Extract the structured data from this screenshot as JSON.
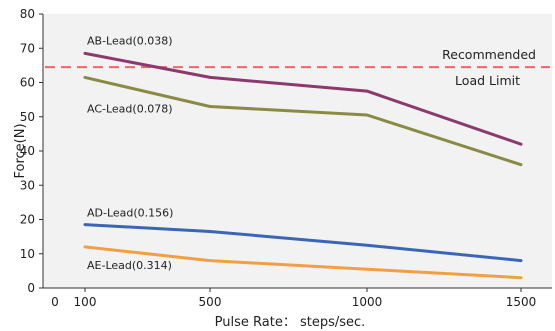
{
  "chart_data": {
    "type": "line",
    "xlabel": "Pulse Rate： steps/sec.",
    "ylabel": "Force(N)",
    "x_ticks": [
      0,
      100,
      500,
      1000,
      1500
    ],
    "y_ticks": [
      0,
      10,
      20,
      30,
      40,
      50,
      60,
      70,
      80
    ],
    "ylim": [
      0,
      80
    ],
    "grid": false,
    "series": [
      {
        "name": "AB-Lead(0.038)",
        "color": "#8b3a6e",
        "x": [
          100,
          500,
          1000,
          1500
        ],
        "y": [
          68.5,
          61.5,
          57.5,
          42
        ]
      },
      {
        "name": "AC-Lead(0.078)",
        "color": "#8a8a45",
        "x": [
          100,
          500,
          1000,
          1500
        ],
        "y": [
          61.5,
          53,
          50.5,
          36
        ]
      },
      {
        "name": "AD-Lead(0.156)",
        "color": "#3a66b5",
        "x": [
          100,
          500,
          1000,
          1500
        ],
        "y": [
          18.5,
          16.5,
          12.5,
          8
        ]
      },
      {
        "name": "AE-Lead(0.314)",
        "color": "#f0a040",
        "x": [
          100,
          500,
          1000,
          1500
        ],
        "y": [
          12,
          8,
          5.5,
          3
        ]
      }
    ],
    "reference_line": {
      "label_line1": "Recommended",
      "label_line2": "Load Limit",
      "y": 64.5,
      "color": "#ee6666"
    }
  }
}
